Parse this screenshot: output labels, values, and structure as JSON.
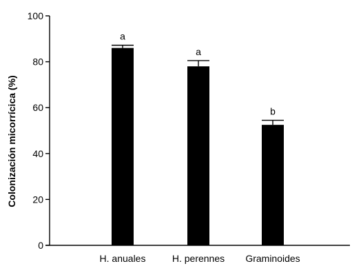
{
  "chart_data": {
    "type": "bar",
    "title": "",
    "xlabel": "",
    "ylabel": "Colonización micorrícica (%)",
    "ylim": [
      0,
      100
    ],
    "yticks": [
      "0",
      "20",
      "40",
      "60",
      "80",
      "100"
    ],
    "categories": [
      "H. anuales",
      "H. perennes",
      "Graminoides"
    ],
    "values": [
      86,
      78,
      52.5
    ],
    "errors": [
      1.2,
      2.5,
      2.0
    ],
    "significance_letters": [
      "a",
      "a",
      "b"
    ],
    "bar_color": "#000000",
    "grid": false,
    "legend": "none"
  }
}
